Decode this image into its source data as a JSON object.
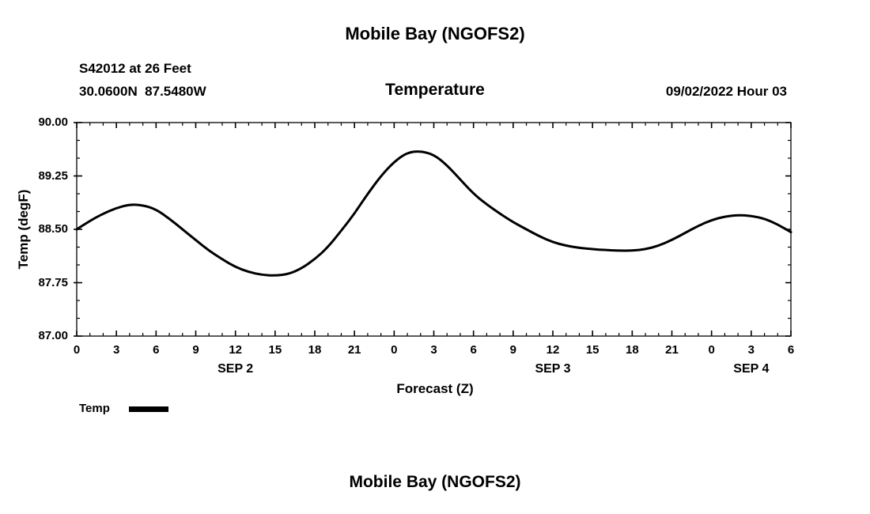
{
  "header": {
    "title": "Mobile Bay (NGOFS2)",
    "station": "S42012 at 26 Feet",
    "coords": "30.0600N  87.5480W",
    "datetime": "09/02/2022 Hour 03"
  },
  "footer": {
    "title": "Mobile Bay (NGOFS2)"
  },
  "chart_data": {
    "type": "line",
    "title": "Temperature",
    "xlabel": "Forecast (Z)",
    "ylabel": "Temp (degF)",
    "ylim": [
      87.0,
      90.0
    ],
    "yticks": [
      87.0,
      87.75,
      88.5,
      89.25,
      90.0
    ],
    "ytick_labels": [
      "87.00",
      "87.75",
      "88.50",
      "89.25",
      "90.00"
    ],
    "xlim": [
      0,
      54
    ],
    "xticks": [
      0,
      3,
      6,
      9,
      12,
      15,
      18,
      21,
      24,
      27,
      30,
      33,
      36,
      39,
      42,
      45,
      48,
      51,
      54
    ],
    "xtick_labels": [
      "0",
      "3",
      "6",
      "9",
      "12",
      "15",
      "18",
      "21",
      "0",
      "3",
      "6",
      "9",
      "12",
      "15",
      "18",
      "21",
      "0",
      "3",
      "6"
    ],
    "date_labels": [
      {
        "label": "SEP 2",
        "hour": 12
      },
      {
        "label": "SEP 3",
        "hour": 36
      },
      {
        "label": "SEP 4",
        "hour": 51
      }
    ],
    "grid": false,
    "legend_position": "bottom-left",
    "legend": [
      {
        "name": "Temp",
        "color": "#000000"
      }
    ],
    "series": [
      {
        "name": "Temp",
        "color": "#000000",
        "x_start_hour": 0,
        "x_step_hours": 1,
        "y": [
          88.5,
          88.62,
          88.72,
          88.8,
          88.85,
          88.84,
          88.78,
          88.65,
          88.5,
          88.35,
          88.2,
          88.08,
          87.97,
          87.9,
          87.86,
          87.85,
          87.87,
          87.95,
          88.08,
          88.25,
          88.48,
          88.72,
          89.0,
          89.25,
          89.45,
          89.58,
          89.6,
          89.55,
          89.4,
          89.2,
          89.0,
          88.85,
          88.72,
          88.6,
          88.5,
          88.4,
          88.32,
          88.27,
          88.24,
          88.22,
          88.21,
          88.2,
          88.2,
          88.22,
          88.27,
          88.35,
          88.45,
          88.55,
          88.63,
          88.68,
          88.7,
          88.69,
          88.65,
          88.57,
          88.46
        ]
      }
    ]
  }
}
